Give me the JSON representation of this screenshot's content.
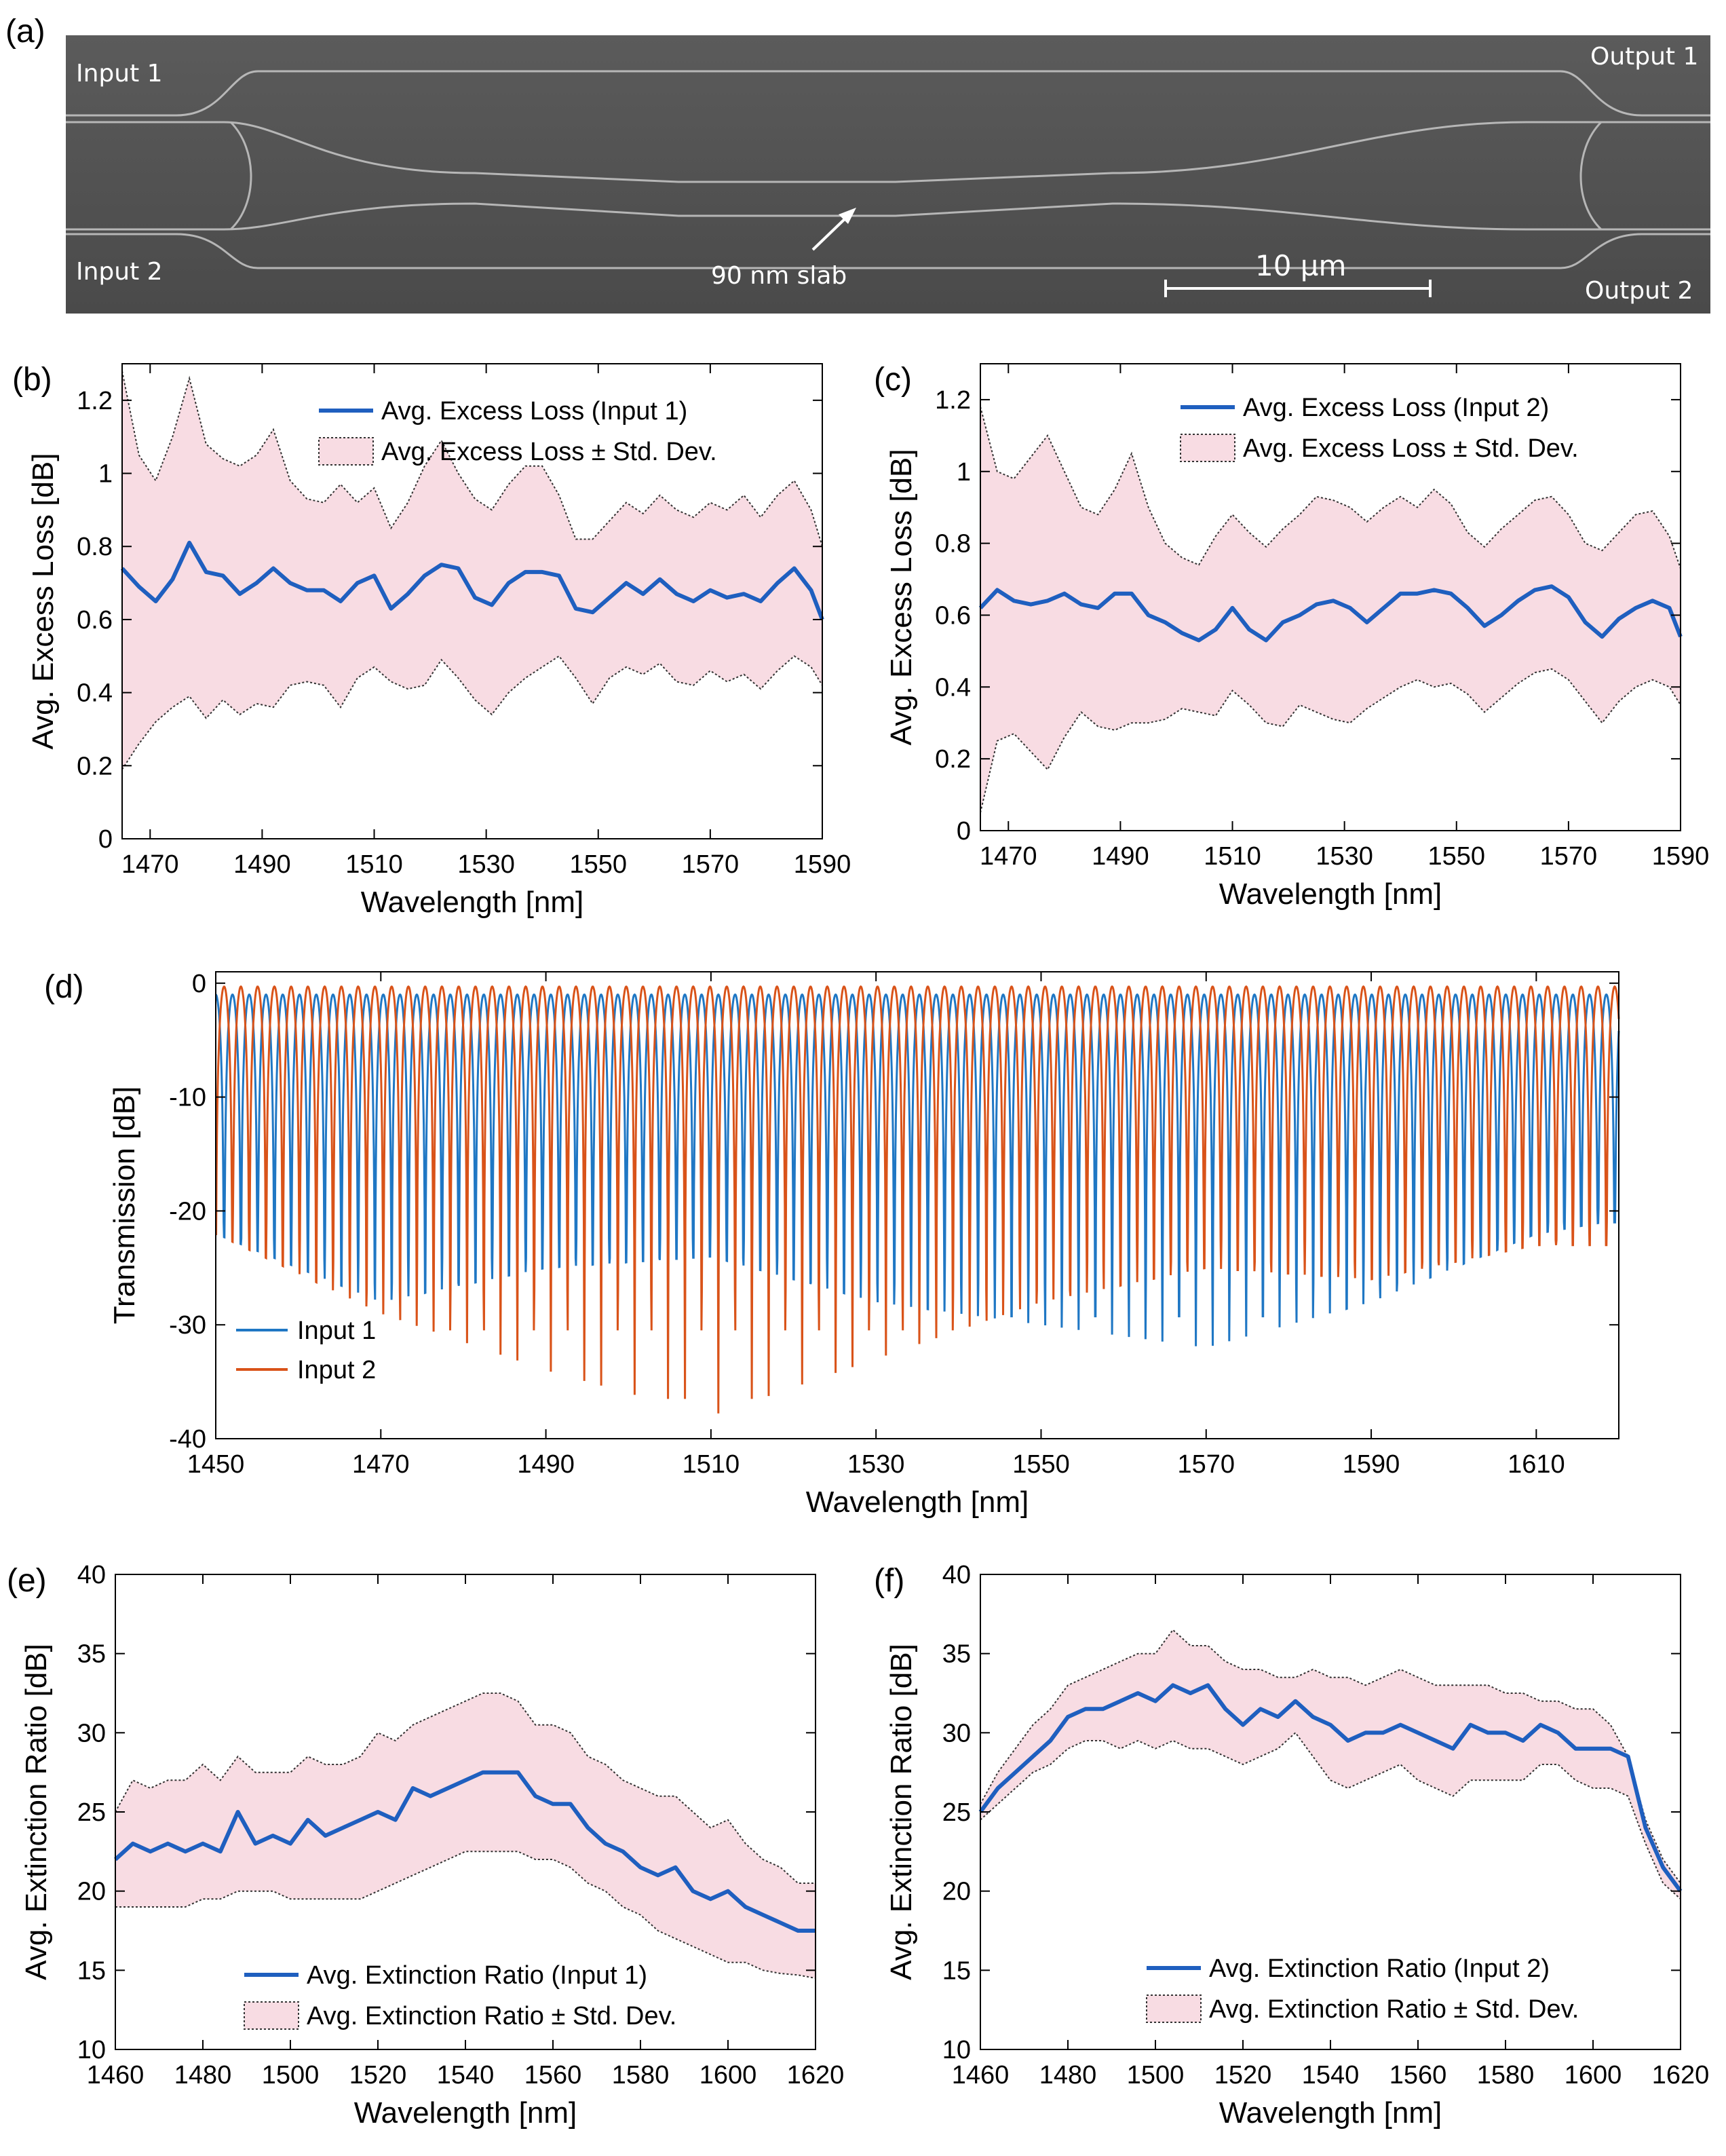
{
  "panel_a": {
    "letter": "(a)",
    "labels": {
      "input1": "Input 1",
      "input2": "Input 2",
      "output1": "Output 1",
      "output2": "Output 2",
      "slab": "90 nm slab",
      "scale": "10 µm"
    }
  },
  "colors": {
    "avg_line": "#1f5fbf",
    "band_fill": "#f8dce3",
    "input1": "#1f77c4",
    "input2": "#d95319"
  },
  "chart_data": [
    {
      "panel": "(b)",
      "type": "area",
      "xlabel": "Wavelength [nm]",
      "ylabel": "Avg. Excess Loss [dB]",
      "xlim": [
        1465,
        1590
      ],
      "ylim": [
        0,
        1.3
      ],
      "xticks": [
        1470,
        1490,
        1510,
        1530,
        1550,
        1570,
        1590
      ],
      "yticks": [
        0,
        0.2,
        0.4,
        0.6,
        0.8,
        1,
        1.2
      ],
      "legend": [
        "Avg. Excess Loss (Input 1)",
        "Avg. Excess Loss ± Std. Dev."
      ],
      "x": [
        1465,
        1468,
        1471,
        1474,
        1477,
        1480,
        1483,
        1486,
        1489,
        1492,
        1495,
        1498,
        1501,
        1504,
        1507,
        1510,
        1513,
        1516,
        1519,
        1522,
        1525,
        1528,
        1531,
        1534,
        1537,
        1540,
        1543,
        1546,
        1549,
        1552,
        1555,
        1558,
        1561,
        1564,
        1567,
        1570,
        1573,
        1576,
        1579,
        1582,
        1585,
        1588,
        1590
      ],
      "mean": [
        0.74,
        0.69,
        0.65,
        0.71,
        0.81,
        0.73,
        0.72,
        0.67,
        0.7,
        0.74,
        0.7,
        0.68,
        0.68,
        0.65,
        0.7,
        0.72,
        0.63,
        0.67,
        0.72,
        0.75,
        0.74,
        0.66,
        0.64,
        0.7,
        0.73,
        0.73,
        0.72,
        0.63,
        0.62,
        0.66,
        0.7,
        0.67,
        0.71,
        0.67,
        0.65,
        0.68,
        0.66,
        0.67,
        0.65,
        0.7,
        0.74,
        0.68,
        0.6
      ],
      "upper": [
        1.28,
        1.05,
        0.98,
        1.1,
        1.26,
        1.08,
        1.04,
        1.02,
        1.05,
        1.12,
        0.98,
        0.93,
        0.92,
        0.97,
        0.92,
        0.96,
        0.85,
        0.92,
        1.02,
        1.09,
        1.0,
        0.93,
        0.9,
        0.97,
        1.02,
        1.02,
        0.94,
        0.82,
        0.82,
        0.87,
        0.92,
        0.89,
        0.94,
        0.9,
        0.88,
        0.92,
        0.9,
        0.94,
        0.88,
        0.94,
        0.98,
        0.9,
        0.8
      ],
      "lower": [
        0.19,
        0.26,
        0.32,
        0.36,
        0.39,
        0.33,
        0.38,
        0.34,
        0.37,
        0.36,
        0.42,
        0.43,
        0.42,
        0.36,
        0.44,
        0.47,
        0.43,
        0.41,
        0.42,
        0.49,
        0.44,
        0.38,
        0.34,
        0.4,
        0.44,
        0.47,
        0.5,
        0.44,
        0.37,
        0.44,
        0.47,
        0.45,
        0.48,
        0.43,
        0.42,
        0.46,
        0.43,
        0.45,
        0.41,
        0.46,
        0.5,
        0.47,
        0.42
      ]
    },
    {
      "panel": "(c)",
      "type": "area",
      "xlabel": "Wavelength [nm]",
      "ylabel": "Avg. Excess Loss [dB]",
      "xlim": [
        1465,
        1590
      ],
      "ylim": [
        0,
        1.3
      ],
      "xticks": [
        1470,
        1490,
        1510,
        1530,
        1550,
        1570,
        1590
      ],
      "yticks": [
        0,
        0.2,
        0.4,
        0.6,
        0.8,
        1,
        1.2
      ],
      "legend": [
        "Avg. Excess Loss (Input 2)",
        "Avg. Excess Loss ± Std. Dev."
      ],
      "x": [
        1465,
        1468,
        1471,
        1474,
        1477,
        1480,
        1483,
        1486,
        1489,
        1492,
        1495,
        1498,
        1501,
        1504,
        1507,
        1510,
        1513,
        1516,
        1519,
        1522,
        1525,
        1528,
        1531,
        1534,
        1537,
        1540,
        1543,
        1546,
        1549,
        1552,
        1555,
        1558,
        1561,
        1564,
        1567,
        1570,
        1573,
        1576,
        1579,
        1582,
        1585,
        1588,
        1590
      ],
      "mean": [
        0.62,
        0.67,
        0.64,
        0.63,
        0.64,
        0.66,
        0.63,
        0.62,
        0.66,
        0.66,
        0.6,
        0.58,
        0.55,
        0.53,
        0.56,
        0.62,
        0.56,
        0.53,
        0.58,
        0.6,
        0.63,
        0.64,
        0.62,
        0.58,
        0.62,
        0.66,
        0.66,
        0.67,
        0.66,
        0.62,
        0.57,
        0.6,
        0.64,
        0.67,
        0.68,
        0.65,
        0.58,
        0.54,
        0.59,
        0.62,
        0.64,
        0.62,
        0.54
      ],
      "upper": [
        1.18,
        1.0,
        0.98,
        1.04,
        1.1,
        1.0,
        0.9,
        0.88,
        0.95,
        1.05,
        0.9,
        0.8,
        0.76,
        0.74,
        0.82,
        0.88,
        0.83,
        0.79,
        0.84,
        0.88,
        0.93,
        0.92,
        0.9,
        0.86,
        0.9,
        0.93,
        0.9,
        0.95,
        0.91,
        0.83,
        0.79,
        0.84,
        0.88,
        0.92,
        0.93,
        0.88,
        0.8,
        0.78,
        0.83,
        0.88,
        0.89,
        0.82,
        0.73
      ],
      "lower": [
        0.05,
        0.25,
        0.27,
        0.22,
        0.17,
        0.26,
        0.33,
        0.29,
        0.28,
        0.3,
        0.3,
        0.31,
        0.34,
        0.33,
        0.32,
        0.39,
        0.35,
        0.3,
        0.29,
        0.35,
        0.33,
        0.31,
        0.3,
        0.34,
        0.37,
        0.4,
        0.42,
        0.4,
        0.41,
        0.38,
        0.33,
        0.37,
        0.41,
        0.44,
        0.45,
        0.42,
        0.36,
        0.3,
        0.36,
        0.4,
        0.42,
        0.4,
        0.35
      ]
    },
    {
      "panel": "(d)",
      "type": "line",
      "xlabel": "Wavelength [nm]",
      "ylabel": "Transmission [dB]",
      "xlim": [
        1450,
        1620
      ],
      "ylim": [
        -40,
        1
      ],
      "xticks": [
        1450,
        1470,
        1490,
        1510,
        1530,
        1550,
        1570,
        1590,
        1610
      ],
      "yticks": [
        -40,
        -30,
        -20,
        -10,
        0
      ],
      "legend": [
        "Input 1",
        "Input 2"
      ],
      "fringe_period_nm": 2.03,
      "series": [
        {
          "name": "Input 1",
          "max_db": -1.0,
          "trough_wavelength_nm": [
            1450,
            1470,
            1490,
            1510,
            1530,
            1550,
            1570,
            1590,
            1610,
            1618
          ],
          "trough_depth_db": [
            -22,
            -28,
            -25,
            -24,
            -28,
            -30,
            -32,
            -28,
            -22,
            -21
          ]
        },
        {
          "name": "Input 2",
          "max_db": -0.3,
          "trough_wavelength_nm": [
            1450,
            1470,
            1490,
            1510,
            1530,
            1550,
            1570,
            1590,
            1610,
            1618
          ],
          "trough_depth_db": [
            -22,
            -29,
            -34,
            -38,
            -33,
            -28,
            -25,
            -26,
            -23,
            -23
          ]
        }
      ]
    },
    {
      "panel": "(e)",
      "type": "area",
      "xlabel": "Wavelength [nm]",
      "ylabel": "Avg. Extinction Ratio [dB]",
      "xlim": [
        1460,
        1620
      ],
      "ylim": [
        10,
        40
      ],
      "xticks": [
        1460,
        1480,
        1500,
        1520,
        1540,
        1560,
        1580,
        1600,
        1620
      ],
      "yticks": [
        10,
        15,
        20,
        25,
        30,
        35,
        40
      ],
      "legend": [
        "Avg. Extinction Ratio (Input 1)",
        "Avg. Extinction Ratio ± Std. Dev."
      ],
      "x": [
        1460,
        1464,
        1468,
        1472,
        1476,
        1480,
        1484,
        1488,
        1492,
        1496,
        1500,
        1504,
        1508,
        1512,
        1516,
        1520,
        1524,
        1528,
        1532,
        1536,
        1540,
        1544,
        1548,
        1552,
        1556,
        1560,
        1564,
        1568,
        1572,
        1576,
        1580,
        1584,
        1588,
        1592,
        1596,
        1600,
        1604,
        1608,
        1612,
        1616,
        1620
      ],
      "mean": [
        22,
        23,
        22.5,
        23,
        22.5,
        23,
        22.5,
        25,
        23,
        23.5,
        23,
        24.5,
        23.5,
        24,
        24.5,
        25,
        24.5,
        26.5,
        26,
        26.5,
        27,
        27.5,
        27.5,
        27.5,
        26,
        25.5,
        25.5,
        24,
        23,
        22.5,
        21.5,
        21,
        21.5,
        20,
        19.5,
        20,
        19,
        18.5,
        18,
        17.5,
        17.5
      ],
      "upper": [
        25,
        27,
        26.5,
        27,
        27,
        28,
        27,
        28.5,
        27.5,
        27.5,
        27.5,
        28.5,
        28,
        28,
        28.5,
        30,
        29.5,
        30.5,
        31,
        31.5,
        32,
        32.5,
        32.5,
        32,
        30.5,
        30.5,
        30,
        28.5,
        28,
        27,
        26.5,
        26,
        26,
        25,
        24,
        24.5,
        23,
        22,
        21.5,
        20.5,
        20.5
      ],
      "lower": [
        19,
        19,
        19,
        19,
        19,
        19.5,
        19.5,
        20,
        20,
        20,
        19.5,
        19.5,
        19.5,
        19.5,
        19.5,
        20,
        20.5,
        21,
        21.5,
        22,
        22.5,
        22.5,
        22.5,
        22.5,
        22,
        22,
        21.5,
        20.5,
        20,
        19,
        18.5,
        17.5,
        17,
        16.5,
        16,
        15.5,
        15.5,
        15,
        14.8,
        14.7,
        14.5
      ]
    },
    {
      "panel": "(f)",
      "type": "area",
      "xlabel": "Wavelength [nm]",
      "ylabel": "Avg. Extinction Ratio [dB]",
      "xlim": [
        1460,
        1620
      ],
      "ylim": [
        10,
        40
      ],
      "xticks": [
        1460,
        1480,
        1500,
        1520,
        1540,
        1560,
        1580,
        1600,
        1620
      ],
      "yticks": [
        10,
        15,
        20,
        25,
        30,
        35,
        40
      ],
      "legend": [
        "Avg. Extinction Ratio (Input 2)",
        "Avg. Extinction Ratio ± Std. Dev."
      ],
      "x": [
        1460,
        1464,
        1468,
        1472,
        1476,
        1480,
        1484,
        1488,
        1492,
        1496,
        1500,
        1504,
        1508,
        1512,
        1516,
        1520,
        1524,
        1528,
        1532,
        1536,
        1540,
        1544,
        1548,
        1552,
        1556,
        1560,
        1564,
        1568,
        1572,
        1576,
        1580,
        1584,
        1588,
        1592,
        1596,
        1600,
        1604,
        1608,
        1612,
        1616,
        1620
      ],
      "mean": [
        25,
        26.5,
        27.5,
        28.5,
        29.5,
        31,
        31.5,
        31.5,
        32,
        32.5,
        32,
        33,
        32.5,
        33,
        31.5,
        30.5,
        31.5,
        31,
        32,
        31,
        30.5,
        29.5,
        30,
        30,
        30.5,
        30,
        29.5,
        29,
        30.5,
        30,
        30,
        29.5,
        30.5,
        30,
        29,
        29,
        29,
        28.5,
        24,
        21.5,
        20
      ],
      "upper": [
        25.5,
        27.5,
        29,
        30.5,
        31.5,
        33,
        33.5,
        34,
        34.5,
        35,
        35,
        36.5,
        35.5,
        35.5,
        34.5,
        34,
        34,
        33.5,
        33.5,
        34,
        33.5,
        33.5,
        33,
        33.5,
        34,
        33.5,
        33,
        33,
        33,
        33,
        32.5,
        32.5,
        32,
        32,
        31.5,
        31.5,
        30.5,
        28.5,
        24.5,
        22,
        20.5
      ],
      "lower": [
        24.5,
        25.5,
        26.5,
        27.5,
        28,
        29,
        29.5,
        29.5,
        29,
        29.5,
        29,
        29.5,
        29,
        29,
        28.5,
        28,
        28.5,
        29,
        30,
        28.5,
        27,
        26.5,
        27,
        27.5,
        28,
        27,
        26.5,
        26,
        27,
        27,
        27,
        27,
        28,
        28,
        27,
        26.5,
        26.5,
        26,
        23,
        20.5,
        19.5
      ]
    }
  ]
}
